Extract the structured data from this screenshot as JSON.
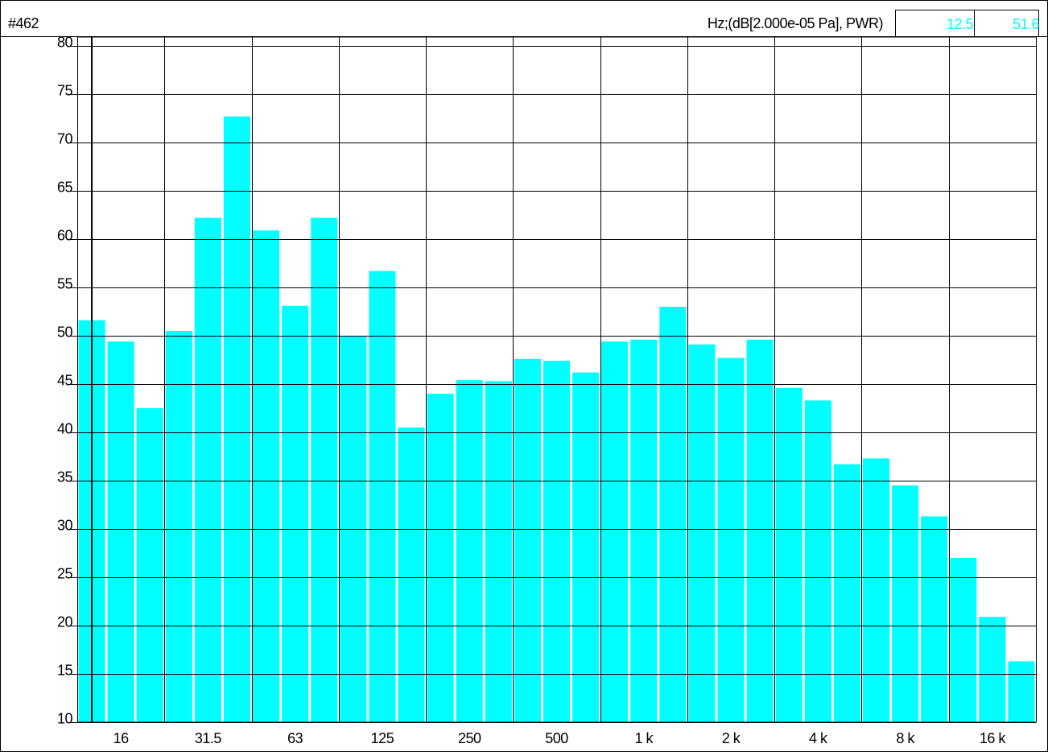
{
  "chart_data": {
    "type": "bar",
    "title": "#462",
    "y_unit_label": "Hz;(dB[2.000e-05 Pa], PWR)",
    "cursor": {
      "frequency": 12.5,
      "value": 51.6
    },
    "categories": [
      null,
      "16",
      null,
      null,
      "31.5",
      null,
      null,
      "63",
      null,
      null,
      "125",
      null,
      null,
      "250",
      null,
      null,
      "500",
      null,
      null,
      "1 k",
      null,
      null,
      "2 k",
      null,
      null,
      "4 k",
      null,
      null,
      "8 k",
      null,
      null,
      "16 k",
      null
    ],
    "values": [
      51.6,
      49.4,
      42.5,
      50.5,
      62.2,
      72.7,
      60.9,
      53.1,
      62.2,
      50.0,
      56.7,
      40.5,
      44.0,
      45.4,
      45.3,
      47.6,
      47.4,
      46.2,
      49.4,
      49.6,
      53.0,
      49.1,
      47.7,
      49.6,
      44.6,
      43.3,
      36.7,
      37.3,
      34.5,
      31.3,
      27.0,
      20.9,
      16.3
    ],
    "color": "#00ffff",
    "ylim": [
      10,
      80
    ],
    "yticks": [
      10,
      15,
      20,
      25,
      30,
      35,
      40,
      45,
      50,
      55,
      60,
      65,
      70,
      75,
      80
    ],
    "grid": true
  }
}
